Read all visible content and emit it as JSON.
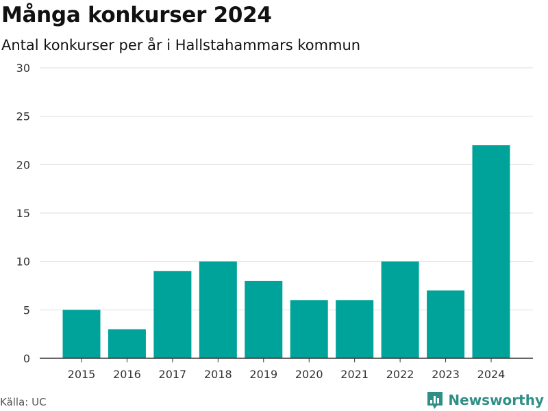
{
  "header": {
    "title": "Många konkurser 2024",
    "subtitle": "Antal konkurser per år i Hallstahammars kommun"
  },
  "footer": {
    "source": "Källa: UC",
    "brand": "Newsworthy",
    "brand_icon": "bar-chart-icon"
  },
  "colors": {
    "bar": "#00A39A",
    "grid": "#dddddd",
    "axis": "#333333",
    "brand": "#2f8f86"
  },
  "chart_data": {
    "type": "bar",
    "title": "Många konkurser 2024",
    "subtitle": "Antal konkurser per år i Hallstahammars kommun",
    "xlabel": "",
    "ylabel": "",
    "categories": [
      "2015",
      "2016",
      "2017",
      "2018",
      "2019",
      "2020",
      "2021",
      "2022",
      "2023",
      "2024"
    ],
    "values": [
      5,
      3,
      9,
      10,
      8,
      6,
      6,
      10,
      7,
      22
    ],
    "ylim": [
      0,
      30
    ],
    "yticks": [
      0,
      5,
      10,
      15,
      20,
      25,
      30
    ],
    "grid": true,
    "legend": "none"
  }
}
